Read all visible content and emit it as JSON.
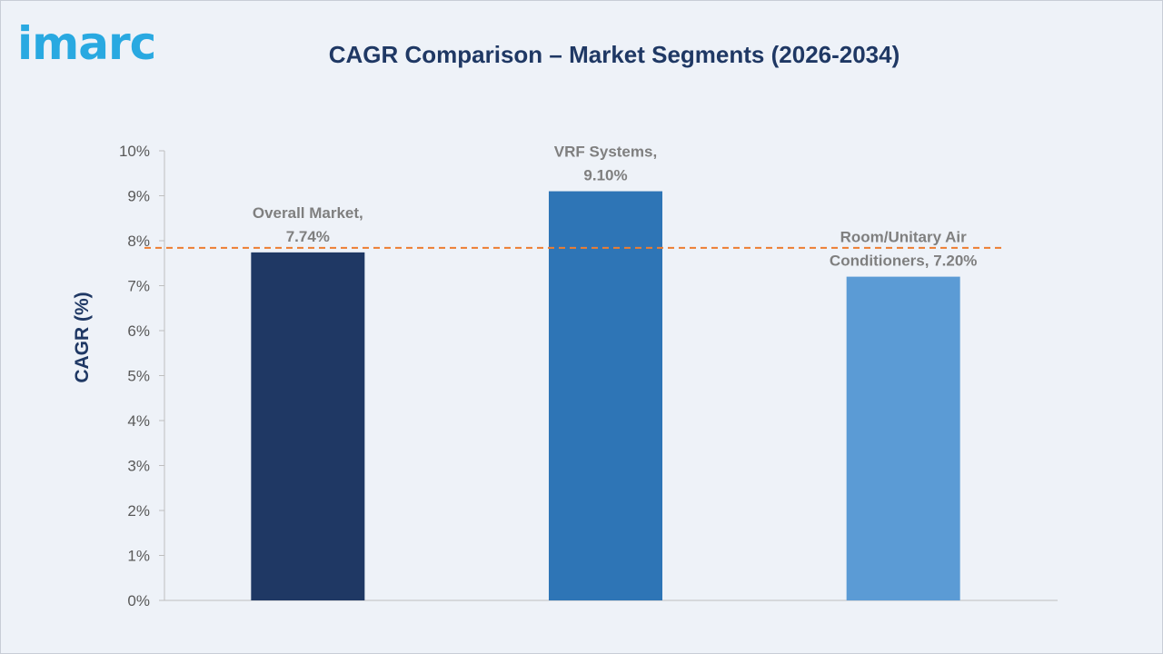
{
  "brand": {
    "logo_text": "imarc",
    "logo_color": "#29a9e1"
  },
  "chart_data": {
    "type": "bar",
    "title": "CAGR Comparison – Market Segments (2026-2034)",
    "xlabel": "",
    "ylabel": "CAGR (%)",
    "categories": [
      "Overall Market",
      "VRF Systems",
      "Room/Unitary Air Conditioners"
    ],
    "values": [
      7.74,
      9.1,
      7.2
    ],
    "data_labels": [
      [
        "Overall Market,",
        "7.74%"
      ],
      [
        "VRF Systems,",
        "9.10%"
      ],
      [
        "Room/Unitary Air",
        "Conditioners, 7.20%"
      ]
    ],
    "bar_colors": [
      "#1f3864",
      "#2e75b6",
      "#5b9bd5"
    ],
    "ylim": [
      0,
      10
    ],
    "yticks": [
      0,
      1,
      2,
      3,
      4,
      5,
      6,
      7,
      8,
      9,
      10
    ],
    "ytick_labels": [
      "0%",
      "1%",
      "2%",
      "3%",
      "4%",
      "5%",
      "6%",
      "7%",
      "8%",
      "9%",
      "10%"
    ],
    "reference_line": {
      "value": 7.84,
      "style": "dashed",
      "color": "#ed7d31"
    },
    "grid": false,
    "legend": "none"
  }
}
